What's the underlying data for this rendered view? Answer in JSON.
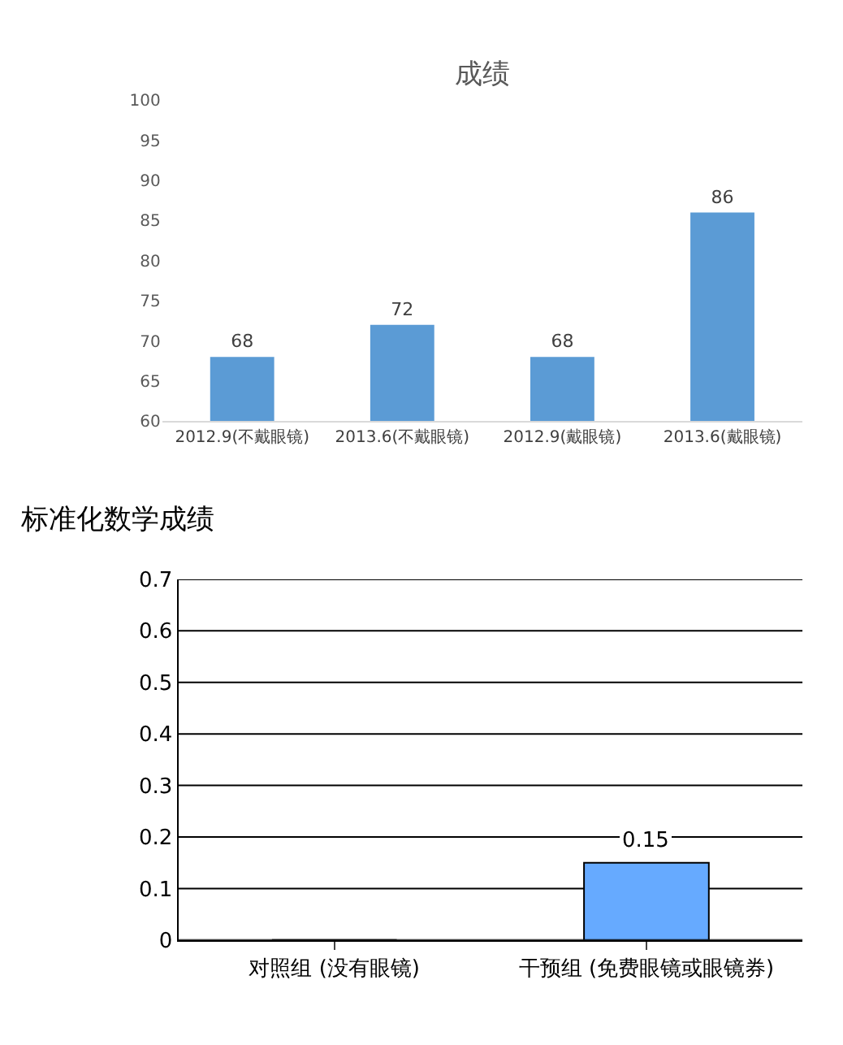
{
  "chart_data": [
    {
      "type": "bar",
      "title": "成绩",
      "categories": [
        "2012.9(不戴眼镜)",
        "2013.6(不戴眼镜)",
        "2012.9(戴眼镜)",
        "2013.6(戴眼镜)"
      ],
      "values": [
        68,
        72,
        68,
        86
      ],
      "color": "#5b9bd5",
      "ylim": [
        60,
        100
      ],
      "yticks": [
        60,
        65,
        70,
        75,
        80,
        85,
        90,
        95,
        100
      ],
      "data_labels": true
    },
    {
      "type": "bar",
      "title": "标准化数学成绩",
      "categories": [
        "对照组 (没有眼镜)",
        "干预组 (免费眼镜或眼镜券)"
      ],
      "values": [
        0,
        0.15
      ],
      "value_labels": [
        null,
        "0.15"
      ],
      "color": "#66aaff",
      "ylim": [
        0,
        0.7
      ],
      "yticks": [
        0,
        0.1,
        0.2,
        0.3,
        0.4,
        0.5,
        0.6,
        0.7
      ],
      "grid": "y"
    }
  ]
}
